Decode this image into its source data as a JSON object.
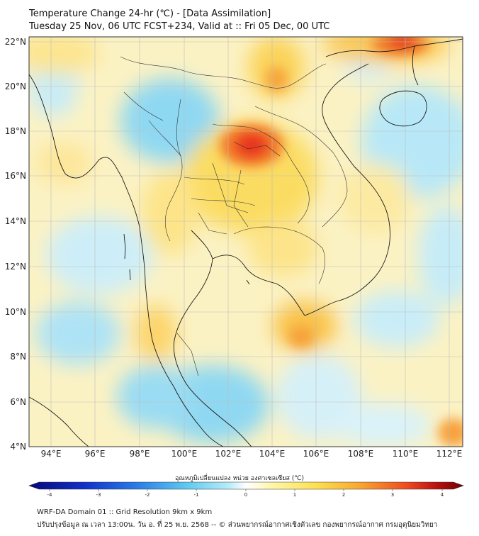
{
  "header": {
    "title_line1": "Temperature Change 24-hr (℃) - [Data Assimilation]",
    "title_line2": "Tuesday 25 Nov, 06 UTC FCST+234, Valid at :: Fri 05 Dec, 00 UTC"
  },
  "map": {
    "lat_ticks": [
      "22°N",
      "20°N",
      "18°N",
      "16°N",
      "14°N",
      "12°N",
      "10°N",
      "8°N",
      "6°N",
      "4°N"
    ],
    "lon_ticks": [
      "94°E",
      "96°E",
      "98°E",
      "100°E",
      "102°E",
      "104°E",
      "106°E",
      "108°E",
      "110°E",
      "112°E"
    ]
  },
  "colorbar": {
    "label": "อุณหภูมิเปลี่ยนแปลง หน่วย องศาเซลเซียส (℃)",
    "ticks": [
      "-4",
      "-3",
      "-2",
      "-1",
      "0",
      "1",
      "2",
      "3",
      "4"
    ],
    "colors": [
      "#08087a",
      "#1030c8",
      "#2a7ee8",
      "#5cc8f0",
      "#b8ecfa",
      "#ffffff",
      "#fff6a8",
      "#fde050",
      "#f8a830",
      "#ef4a20",
      "#b81010",
      "#700000"
    ]
  },
  "footer": {
    "line1": "WRF-DA Domain 01 :: Grid Resolution 9km x 9km",
    "line2": "ปรับปรุงข้อมูล ณ เวลา 13:00น. วัน อ. ที่ 25 พ.ย. 2568 -- © ส่วนพยากรณ์อากาศเชิงตัวเลข กองพยากรณ์อากาศ กรมอุตุนิยมวิทยา"
  }
}
